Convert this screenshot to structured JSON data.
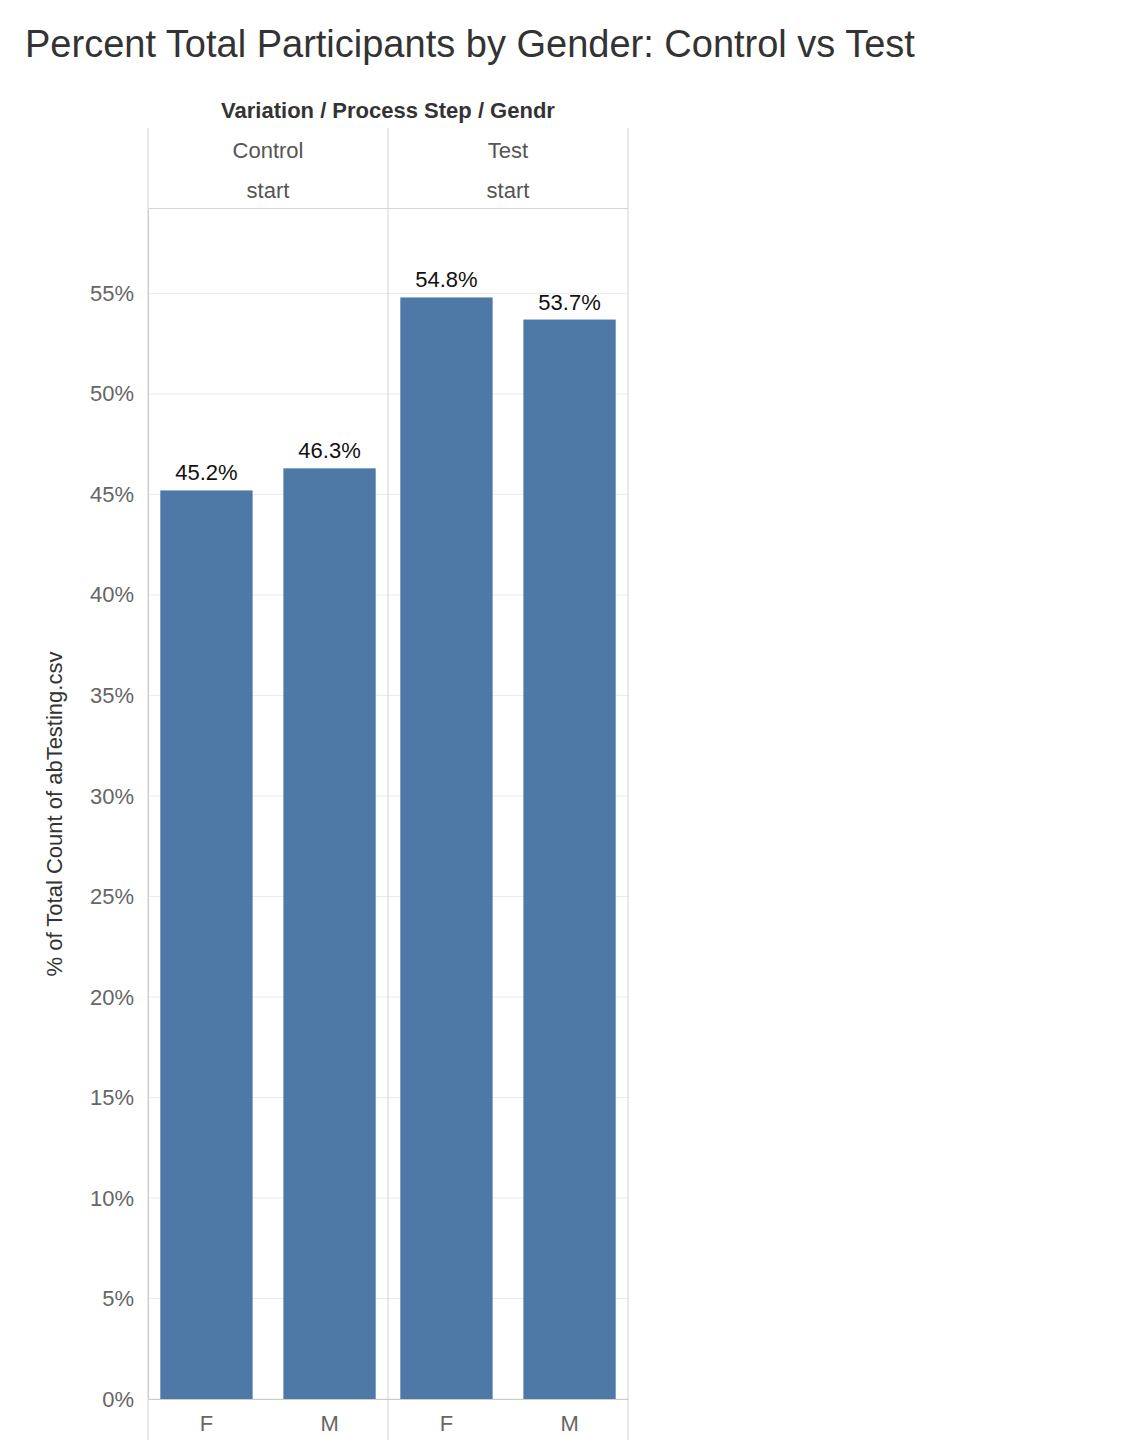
{
  "chart_data": {
    "type": "bar",
    "title": "Percent Total Participants by Gender: Control vs Test",
    "header": "Variation / Process Step / Gendr",
    "y_label": "% of Total Count of abTesting.csv",
    "color": "#4e79a7",
    "groups": [
      {
        "name": "Control",
        "step": "start",
        "categories": [
          "F",
          "M"
        ],
        "values": [
          45.2,
          46.3
        ],
        "value_labels": [
          "45.2%",
          "46.3%"
        ]
      },
      {
        "name": "Test",
        "step": "start",
        "categories": [
          "F",
          "M"
        ],
        "values": [
          54.8,
          53.7
        ],
        "value_labels": [
          "54.8%",
          "53.7%"
        ]
      }
    ],
    "ylim": [
      0,
      59.2
    ],
    "yticks": [
      {
        "value": 0,
        "label": "0%"
      },
      {
        "value": 5,
        "label": "5%"
      },
      {
        "value": 10,
        "label": "10%"
      },
      {
        "value": 15,
        "label": "15%"
      },
      {
        "value": 20,
        "label": "20%"
      },
      {
        "value": 25,
        "label": "25%"
      },
      {
        "value": 30,
        "label": "30%"
      },
      {
        "value": 35,
        "label": "35%"
      },
      {
        "value": 40,
        "label": "40%"
      },
      {
        "value": 45,
        "label": "45%"
      },
      {
        "value": 50,
        "label": "50%"
      },
      {
        "value": 55,
        "label": "55%"
      }
    ],
    "grid": true,
    "data_labels": true
  }
}
